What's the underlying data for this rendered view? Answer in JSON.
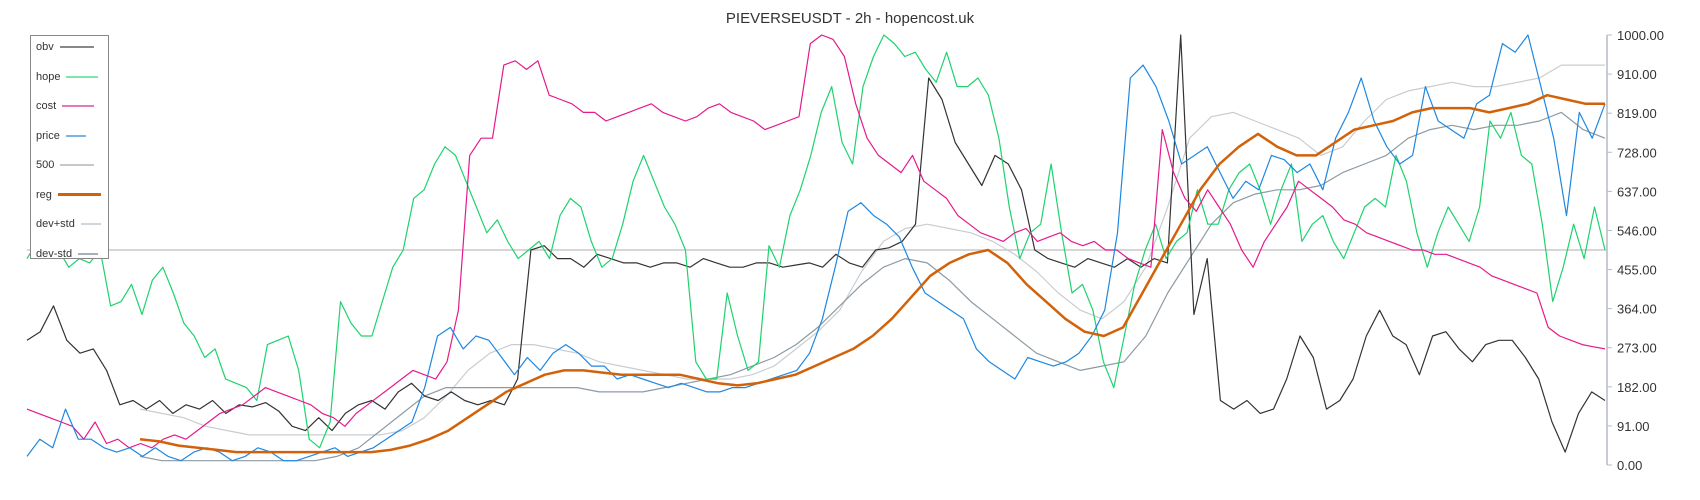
{
  "title": "PIEVERSEUSDT - 2h - hopencost.uk",
  "chart_data": {
    "type": "line",
    "title": "PIEVERSEUSDT - 2h - hopencost.uk",
    "xlabel": "",
    "ylabel": "",
    "ylim": [
      0,
      1000
    ],
    "y_ticks": [
      "1000.00",
      "910.00",
      "819.00",
      "728.00",
      "637.00",
      "546.00",
      "455.00",
      "364.00",
      "273.00",
      "182.00",
      "91.00",
      "0.00"
    ],
    "grid": false,
    "legend_position": "top-left",
    "hline": {
      "name": "500",
      "value": 500,
      "color": "#c8c8c8"
    },
    "series": [
      {
        "name": "obv",
        "color": "#333333",
        "width": 1.2,
        "values": [
          290,
          310,
          370,
          290,
          260,
          270,
          220,
          140,
          150,
          130,
          150,
          120,
          140,
          130,
          150,
          120,
          140,
          135,
          145,
          125,
          90,
          80,
          110,
          80,
          120,
          140,
          150,
          130,
          170,
          190,
          160,
          150,
          170,
          150,
          140,
          150,
          140,
          200,
          500,
          510,
          480,
          480,
          460,
          490,
          480,
          470,
          470,
          460,
          470,
          470,
          460,
          480,
          470,
          460,
          460,
          470,
          470,
          460,
          465,
          470,
          460,
          490,
          470,
          460,
          500,
          505,
          520,
          560,
          900,
          850,
          750,
          700,
          650,
          720,
          700,
          640,
          500,
          480,
          470,
          460,
          480,
          470,
          460,
          480,
          460,
          480,
          470,
          1000,
          350,
          480,
          150,
          130,
          150,
          120,
          130,
          200,
          300,
          250,
          130,
          150,
          200,
          300,
          360,
          300,
          280,
          210,
          300,
          310,
          270,
          240,
          280,
          290,
          290,
          250,
          200,
          100,
          30,
          120,
          170,
          150
        ]
      },
      {
        "name": "hope",
        "color": "#1ed26e",
        "width": 1.2,
        "values": [
          480,
          520,
          550,
          500,
          460,
          480,
          470,
          500,
          370,
          380,
          420,
          350,
          430,
          460,
          400,
          330,
          300,
          250,
          270,
          200,
          190,
          180,
          150,
          280,
          290,
          300,
          220,
          60,
          40,
          100,
          380,
          330,
          300,
          300,
          380,
          460,
          500,
          620,
          640,
          700,
          740,
          720,
          660,
          600,
          540,
          570,
          520,
          480,
          500,
          520,
          480,
          580,
          620,
          600,
          520,
          460,
          480,
          560,
          660,
          720,
          660,
          600,
          560,
          500,
          240,
          200,
          200,
          400,
          300,
          220,
          240,
          510,
          460,
          580,
          640,
          720,
          820,
          880,
          750,
          700,
          880,
          950,
          1000,
          980,
          950,
          960,
          920,
          890,
          960,
          880,
          880,
          900,
          860,
          760,
          600,
          480,
          540,
          560,
          700,
          540,
          400,
          420,
          360,
          240,
          180,
          300,
          420,
          500,
          560,
          480,
          520,
          540,
          640,
          560,
          560,
          640,
          680,
          700,
          640,
          560,
          640,
          700,
          520,
          560,
          580,
          520,
          480,
          540,
          600,
          620,
          600,
          720,
          660,
          540,
          460,
          540,
          600,
          560,
          520,
          600,
          800,
          760,
          820,
          720,
          700,
          560,
          380,
          460,
          560,
          480,
          600,
          500
        ]
      },
      {
        "name": "cost",
        "color": "#e6198c",
        "width": 1.2,
        "values": [
          130,
          120,
          110,
          100,
          90,
          60,
          100,
          50,
          60,
          40,
          50,
          40,
          60,
          70,
          60,
          80,
          100,
          120,
          130,
          140,
          160,
          180,
          170,
          160,
          150,
          140,
          120,
          110,
          90,
          120,
          140,
          160,
          180,
          200,
          220,
          210,
          200,
          240,
          360,
          720,
          760,
          760,
          930,
          940,
          920,
          940,
          860,
          850,
          840,
          820,
          820,
          800,
          810,
          820,
          830,
          840,
          820,
          810,
          800,
          810,
          830,
          840,
          820,
          810,
          800,
          780,
          790,
          800,
          810,
          980,
          1000,
          990,
          950,
          840,
          760,
          720,
          700,
          680,
          720,
          660,
          640,
          620,
          580,
          560,
          540,
          530,
          520,
          540,
          550,
          520,
          530,
          540,
          520,
          510,
          520,
          500,
          500,
          480,
          470,
          460,
          780,
          680,
          620,
          590,
          640,
          600,
          560,
          500,
          460,
          520,
          560,
          600,
          660,
          640,
          620,
          600,
          570,
          560,
          540,
          530,
          520,
          510,
          500,
          500,
          490,
          490,
          480,
          470,
          460,
          440,
          430,
          420,
          410,
          400,
          320,
          300,
          290,
          280,
          275,
          270
        ]
      },
      {
        "name": "price",
        "color": "#1e87e1",
        "width": 1.2,
        "values": [
          20,
          60,
          40,
          130,
          60,
          60,
          40,
          30,
          40,
          20,
          40,
          20,
          10,
          30,
          40,
          30,
          10,
          20,
          40,
          30,
          10,
          10,
          20,
          30,
          40,
          20,
          30,
          40,
          60,
          80,
          100,
          180,
          300,
          320,
          270,
          300,
          290,
          250,
          210,
          250,
          220,
          260,
          280,
          260,
          230,
          230,
          200,
          210,
          200,
          190,
          180,
          190,
          180,
          170,
          170,
          180,
          180,
          190,
          200,
          210,
          220,
          260,
          340,
          460,
          590,
          610,
          580,
          560,
          530,
          460,
          400,
          380,
          360,
          340,
          270,
          240,
          220,
          200,
          250,
          240,
          230,
          240,
          260,
          300,
          360,
          540,
          900,
          930,
          880,
          800,
          700,
          720,
          740,
          680,
          620,
          660,
          640,
          720,
          710,
          680,
          700,
          640,
          760,
          820,
          900,
          800,
          740,
          700,
          720,
          880,
          800,
          780,
          760,
          840,
          860,
          980,
          960,
          1000,
          880,
          760,
          580,
          820,
          760,
          840
        ]
      },
      {
        "name": "reg",
        "color": "#d2620a",
        "width": 2.5,
        "values": [
          60,
          55,
          45,
          40,
          35,
          30,
          30,
          30,
          30,
          30,
          30,
          30,
          30,
          35,
          45,
          60,
          80,
          110,
          140,
          170,
          190,
          210,
          220,
          220,
          215,
          210,
          210,
          210,
          210,
          200,
          190,
          185,
          190,
          200,
          210,
          230,
          250,
          270,
          300,
          340,
          390,
          440,
          470,
          490,
          500,
          470,
          420,
          380,
          340,
          310,
          300,
          320,
          400,
          480,
          560,
          640,
          700,
          740,
          770,
          740,
          720,
          720,
          750,
          780,
          790,
          800,
          820,
          830,
          830,
          830,
          820,
          830,
          840,
          860,
          850,
          840,
          840
        ]
      },
      {
        "name": "dev+std",
        "color": "#c8cdd2",
        "width": 1.2,
        "values": [
          130,
          120,
          110,
          90,
          80,
          70,
          70,
          70,
          70,
          70,
          70,
          70,
          80,
          110,
          160,
          220,
          260,
          280,
          280,
          270,
          260,
          240,
          230,
          220,
          210,
          200,
          200,
          200,
          210,
          230,
          270,
          310,
          360,
          450,
          520,
          550,
          560,
          550,
          540,
          520,
          490,
          450,
          400,
          360,
          340,
          380,
          460,
          600,
          760,
          810,
          820,
          800,
          780,
          760,
          720,
          740,
          800,
          850,
          870,
          880,
          890,
          880,
          880,
          890,
          900,
          930,
          930,
          930
        ]
      },
      {
        "name": "dev-std",
        "color": "#8c9aa3",
        "width": 1.2,
        "values": [
          20,
          10,
          10,
          10,
          10,
          10,
          10,
          10,
          10,
          20,
          40,
          80,
          120,
          160,
          180,
          180,
          180,
          180,
          180,
          180,
          180,
          170,
          170,
          170,
          180,
          190,
          200,
          210,
          230,
          250,
          280,
          320,
          370,
          420,
          460,
          480,
          470,
          430,
          380,
          340,
          300,
          260,
          240,
          220,
          230,
          240,
          300,
          400,
          480,
          560,
          610,
          630,
          640,
          640,
          650,
          680,
          700,
          720,
          760,
          780,
          790,
          780,
          790,
          790,
          800,
          820,
          780,
          760
        ]
      }
    ]
  }
}
